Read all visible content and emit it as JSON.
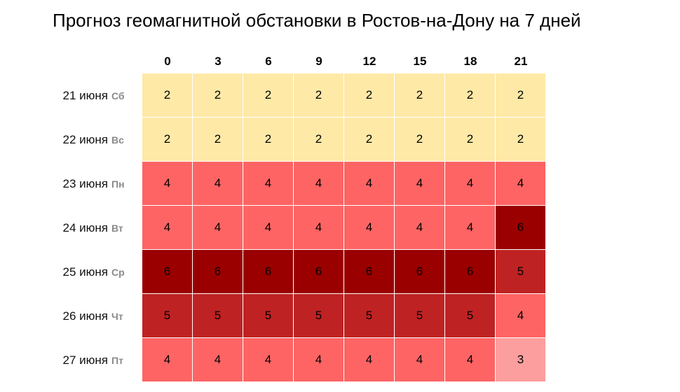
{
  "title": "Прогноз геомагнитной обстановки в Ростов-на-Дону на 7 дней",
  "hours": [
    "0",
    "3",
    "6",
    "9",
    "12",
    "15",
    "18",
    "21"
  ],
  "colors": {
    "2": "#fee9a7",
    "3": "#fd9e9e",
    "4": "#fe6464",
    "5": "#bf2222",
    "6": "#9a0000"
  },
  "rows": [
    {
      "date": "21 июня",
      "dow": "Сб",
      "values": [
        2,
        2,
        2,
        2,
        2,
        2,
        2,
        2
      ]
    },
    {
      "date": "22 июня",
      "dow": "Вс",
      "values": [
        2,
        2,
        2,
        2,
        2,
        2,
        2,
        2
      ]
    },
    {
      "date": "23 июня",
      "dow": "Пн",
      "values": [
        4,
        4,
        4,
        4,
        4,
        4,
        4,
        4
      ]
    },
    {
      "date": "24 июня",
      "dow": "Вт",
      "values": [
        4,
        4,
        4,
        4,
        4,
        4,
        4,
        6
      ]
    },
    {
      "date": "25 июня",
      "dow": "Ср",
      "values": [
        6,
        6,
        6,
        6,
        6,
        6,
        6,
        5
      ]
    },
    {
      "date": "26 июня",
      "dow": "Чт",
      "values": [
        5,
        5,
        5,
        5,
        5,
        5,
        5,
        4
      ]
    },
    {
      "date": "27 июня",
      "dow": "Пт",
      "values": [
        4,
        4,
        4,
        4,
        4,
        4,
        4,
        3
      ]
    }
  ]
}
